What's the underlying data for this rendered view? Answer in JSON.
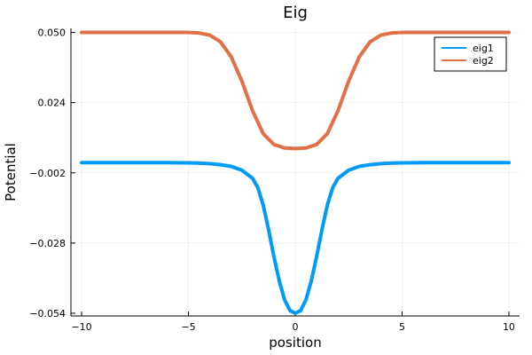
{
  "chart_data": {
    "type": "line",
    "title": "Eig",
    "xlabel": "position",
    "ylabel": "Potential",
    "xlim": [
      -10.5,
      10.5
    ],
    "ylim": [
      -0.055,
      0.0515
    ],
    "x_ticks": [
      -10,
      -5,
      0,
      5,
      10
    ],
    "x_tick_labels": [
      "−10",
      "−5",
      "0",
      "5",
      "10"
    ],
    "y_ticks": [
      -0.054,
      -0.028,
      -0.002,
      0.024,
      0.05
    ],
    "y_tick_labels": [
      "−0.054",
      "−0.028",
      "−0.002",
      "0.024",
      "0.050"
    ],
    "grid": true,
    "legend_position": "top-right",
    "series": [
      {
        "name": "eig1",
        "color": "#009AF9",
        "x": [
          -10,
          -9,
          -8,
          -7,
          -6,
          -5,
          -4.5,
          -4,
          -3.5,
          -3,
          -2.5,
          -2,
          -1.75,
          -1.5,
          -1.25,
          -1,
          -0.75,
          -0.5,
          -0.25,
          0,
          0.25,
          0.5,
          0.75,
          1,
          1.25,
          1.5,
          1.75,
          2,
          2.5,
          3,
          3.5,
          4,
          4.5,
          5,
          6,
          7,
          8,
          9,
          10
        ],
        "y": [
          0.0018,
          0.0018,
          0.0018,
          0.0018,
          0.0018,
          0.0017,
          0.0016,
          0.0014,
          0.001,
          0.0004,
          -0.001,
          -0.004,
          -0.0075,
          -0.014,
          -0.023,
          -0.033,
          -0.042,
          -0.049,
          -0.053,
          -0.054,
          -0.053,
          -0.049,
          -0.042,
          -0.033,
          -0.023,
          -0.014,
          -0.0075,
          -0.004,
          -0.001,
          0.0004,
          0.001,
          0.0014,
          0.0016,
          0.0017,
          0.0018,
          0.0018,
          0.0018,
          0.0018,
          0.0018
        ]
      },
      {
        "name": "eig2",
        "color": "#E26F46",
        "x": [
          -10,
          -9,
          -8,
          -7,
          -6,
          -5,
          -4.5,
          -4,
          -3.5,
          -3,
          -2.5,
          -2,
          -1.5,
          -1,
          -0.5,
          0,
          0.5,
          1,
          1.5,
          2,
          2.5,
          3,
          3.5,
          4,
          4.5,
          5,
          6,
          7,
          8,
          9,
          10
        ],
        "y": [
          0.05,
          0.05,
          0.05,
          0.05,
          0.05,
          0.05,
          0.0498,
          0.049,
          0.0465,
          0.041,
          0.032,
          0.021,
          0.0125,
          0.0085,
          0.0072,
          0.007,
          0.0072,
          0.0085,
          0.0125,
          0.021,
          0.032,
          0.041,
          0.0465,
          0.049,
          0.0498,
          0.05,
          0.05,
          0.05,
          0.05,
          0.05,
          0.05
        ]
      }
    ]
  }
}
